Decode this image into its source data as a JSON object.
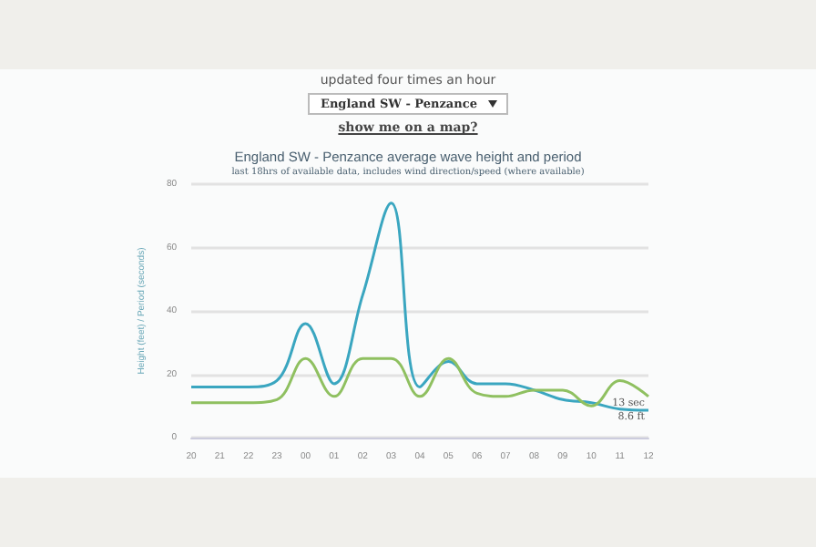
{
  "chart_data": {
    "type": "line",
    "title": "England SW - Penzance average wave height and period",
    "subtitle": "last 18hrs of available data, includes wind direction/speed (where available)",
    "ylabel": "Height (feet) / Period (seconds)",
    "categories": [
      "20",
      "21",
      "22",
      "23",
      "00",
      "01",
      "02",
      "03",
      "04",
      "05",
      "06",
      "07",
      "08",
      "09",
      "10",
      "11",
      "12"
    ],
    "series": [
      {
        "color": "#3aa6c0",
        "values": [
          16,
          16,
          16,
          18,
          36,
          17,
          45,
          74,
          16,
          24,
          17,
          17,
          15,
          12,
          11,
          9,
          8.6
        ]
      },
      {
        "color": "#8fc060",
        "values": [
          11,
          11,
          11,
          12,
          25,
          13,
          25,
          25,
          13,
          25,
          14,
          13,
          15,
          15,
          10,
          18,
          13
        ]
      }
    ],
    "ylim": [
      0,
      80
    ],
    "yticks": [
      0,
      20,
      40,
      60,
      80
    ],
    "grid": "y",
    "marker": "none",
    "line_style": "solid",
    "annotations": [
      "updated four times an hour",
      "England SW - Penzance",
      "show me on a map?",
      {
        "text": "13 sec",
        "x": "12",
        "y": 13
      },
      {
        "text": "8.6 ft",
        "x": "12",
        "y": 8.6
      }
    ]
  }
}
